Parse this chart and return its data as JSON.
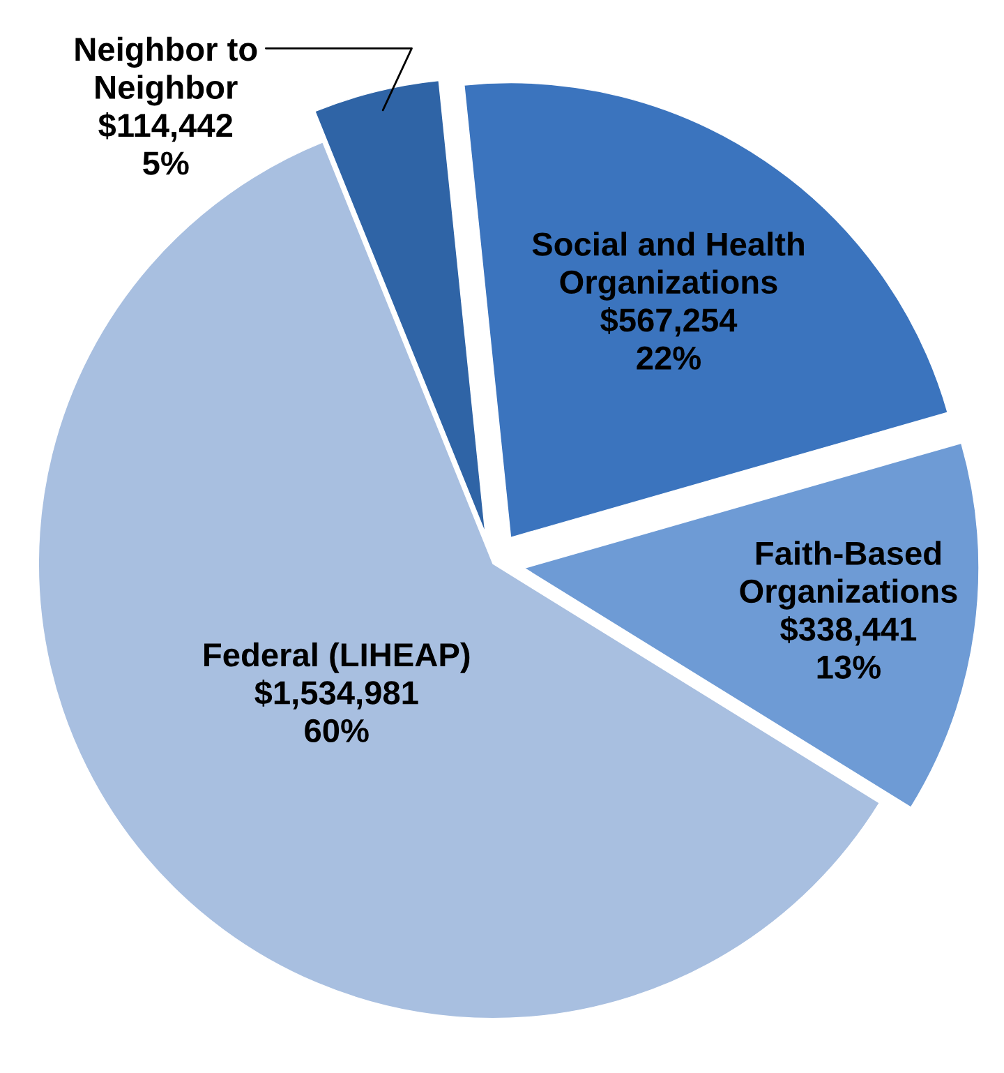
{
  "chart_data": {
    "type": "pie",
    "categories": [
      "Neighbor to\nNeighbor",
      "Social and Health\nOrganizations",
      "Faith-Based\nOrganizations",
      "Federal (LIHEAP)"
    ],
    "values": [
      114442,
      567254,
      338441,
      1534981
    ],
    "value_labels": [
      "$114,442\n5%",
      "$567,254\n22%",
      "$338,441\n13%",
      "$1,534,981\n60%"
    ],
    "colors": [
      "#2f64a6",
      "#3b74be",
      "#6e9bd5",
      "#a8bfe0"
    ]
  }
}
